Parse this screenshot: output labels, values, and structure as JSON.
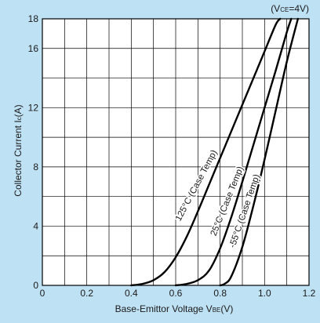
{
  "chart_data": {
    "type": "line",
    "title": "",
    "condition_label": "(V",
    "condition_sub": "CE",
    "condition_tail": "=4V)",
    "xlabel": "Base-Emittor Voltage V",
    "xlabel_sub": "BE",
    "xlabel_tail": "(V)",
    "ylabel": "Collector Current I",
    "ylabel_sub": "c",
    "ylabel_tail": "(A)",
    "xlim": [
      0,
      1.2
    ],
    "ylim": [
      0,
      18
    ],
    "x_ticks": [
      0,
      0.2,
      0.4,
      0.6,
      0.8,
      1.0,
      1.2
    ],
    "x_tick_labels": [
      "0",
      "0.2",
      "0.4",
      "0.6",
      "0.8",
      "1.0",
      "1.2"
    ],
    "y_ticks": [
      0,
      4,
      8,
      12,
      16,
      18
    ],
    "y_tick_labels": [
      "0",
      "4",
      "8",
      "12",
      "16",
      "18"
    ],
    "x_grid_step": 0.1,
    "y_grid_step": 2,
    "grid": true,
    "series": [
      {
        "name": "125°C (Case Temp)",
        "label_at": [
          0.62,
          4.3
        ],
        "label_angle": -62,
        "points": [
          [
            0.4,
            0.0
          ],
          [
            0.45,
            0.1
          ],
          [
            0.5,
            0.35
          ],
          [
            0.55,
            0.9
          ],
          [
            0.6,
            1.9
          ],
          [
            0.65,
            3.3
          ],
          [
            0.7,
            5.0
          ],
          [
            0.75,
            6.8
          ],
          [
            0.8,
            8.6
          ],
          [
            0.85,
            10.4
          ],
          [
            0.9,
            12.2
          ],
          [
            0.95,
            14.0
          ],
          [
            1.0,
            15.8
          ],
          [
            1.05,
            17.6
          ],
          [
            1.07,
            18.0
          ]
        ]
      },
      {
        "name": "25°C (Case Temp)",
        "label_at": [
          0.78,
          3.3
        ],
        "label_angle": -68,
        "points": [
          [
            0.6,
            0.0
          ],
          [
            0.65,
            0.1
          ],
          [
            0.7,
            0.35
          ],
          [
            0.75,
            1.0
          ],
          [
            0.8,
            2.5
          ],
          [
            0.85,
            4.6
          ],
          [
            0.9,
            7.0
          ],
          [
            0.95,
            9.5
          ],
          [
            1.0,
            12.0
          ],
          [
            1.05,
            14.5
          ],
          [
            1.1,
            17.1
          ],
          [
            1.12,
            18.0
          ]
        ]
      },
      {
        "name": "-55°C (Case Temp)",
        "label_at": [
          0.865,
          2.5
        ],
        "label_angle": -71,
        "points": [
          [
            0.8,
            0.0
          ],
          [
            0.82,
            0.1
          ],
          [
            0.85,
            0.6
          ],
          [
            0.9,
            2.6
          ],
          [
            0.95,
            5.4
          ],
          [
            1.0,
            8.5
          ],
          [
            1.05,
            11.8
          ],
          [
            1.1,
            15.1
          ],
          [
            1.15,
            18.0
          ]
        ]
      }
    ]
  }
}
